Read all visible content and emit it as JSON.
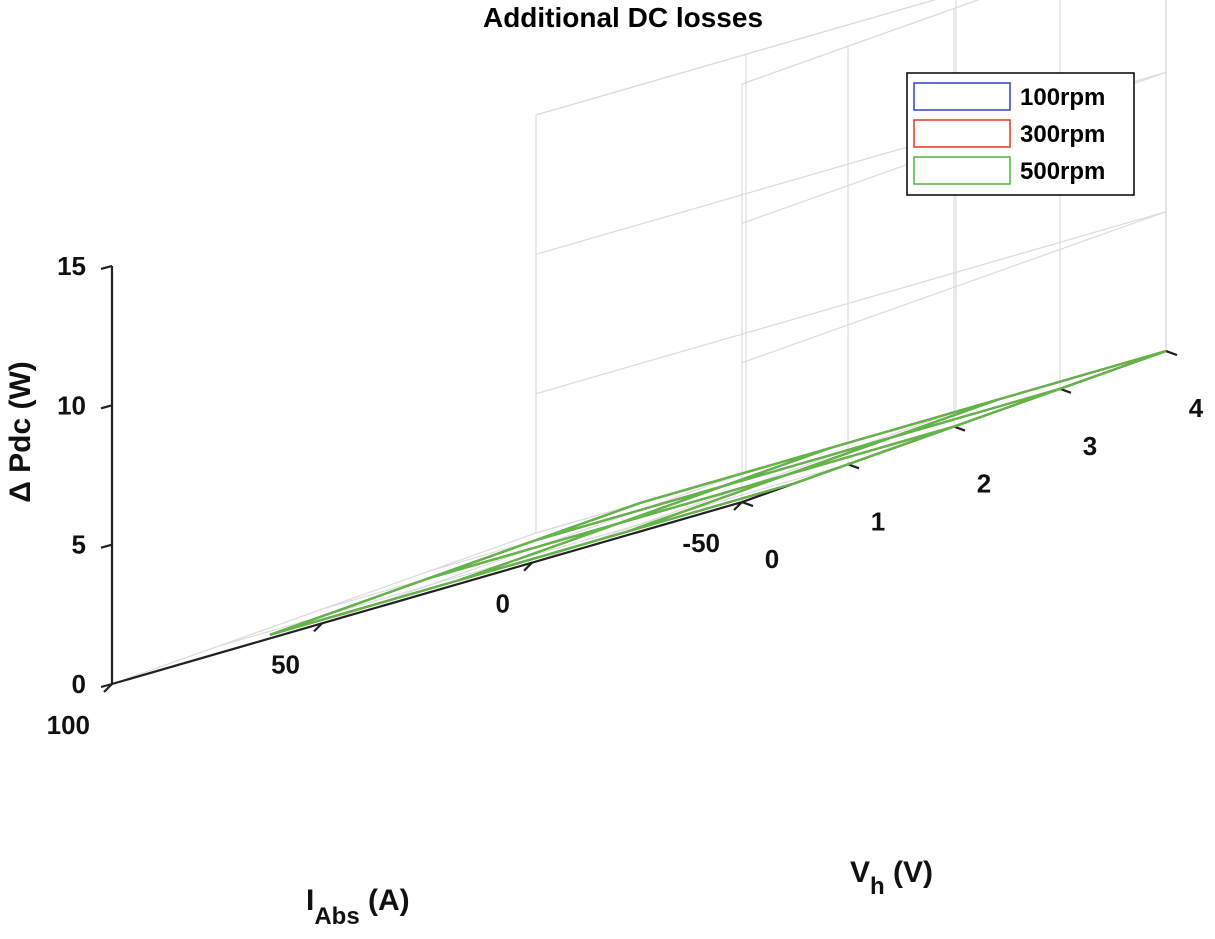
{
  "chart_data": {
    "type": "surface-mesh",
    "title": "Additional DC losses",
    "zlabel": "Δ Pdc (W)",
    "xaxis_label": {
      "main": "I",
      "sub": "Abs",
      "unit": " (A)"
    },
    "yaxis_label": {
      "main": "V",
      "sub": "h",
      "unit": " (V)"
    },
    "xlim": [
      -50,
      100
    ],
    "ylim": [
      0,
      4
    ],
    "zlim": [
      0,
      15
    ],
    "xticks": [
      100,
      50,
      0,
      -50
    ],
    "yticks": [
      0,
      1,
      2,
      3,
      4
    ],
    "zticks": [
      0,
      5,
      10,
      15
    ],
    "grid": true,
    "legend_position": "top-right",
    "x": [
      -50,
      -10,
      30,
      75
    ],
    "y": [
      0.5,
      2,
      3,
      4
    ],
    "series": [
      {
        "name": "100rpm",
        "color": "#3a4fc4",
        "z": [
          [
            0,
            0,
            0,
            0
          ],
          [
            0,
            0,
            0,
            0
          ],
          [
            0,
            0,
            0,
            0
          ],
          [
            0,
            0,
            0,
            0
          ]
        ]
      },
      {
        "name": "300rpm",
        "color": "#e8452a",
        "z": [
          [
            0,
            0,
            0,
            0
          ],
          [
            0,
            0,
            0,
            0
          ],
          [
            0,
            0,
            0,
            0
          ],
          [
            0,
            0,
            0,
            0
          ]
        ]
      },
      {
        "name": "500rpm",
        "color": "#5cb946",
        "z": [
          [
            0,
            0,
            0,
            0
          ],
          [
            0,
            0,
            0,
            0
          ],
          [
            0,
            0,
            0,
            0
          ],
          [
            0,
            0,
            0,
            0
          ]
        ]
      }
    ],
    "surface_z_500rpm": [
      [
        0,
        0,
        0,
        0
      ],
      [
        0,
        0,
        0,
        0
      ],
      [
        0,
        0,
        0,
        0
      ],
      [
        0,
        0,
        0,
        0
      ]
    ]
  }
}
